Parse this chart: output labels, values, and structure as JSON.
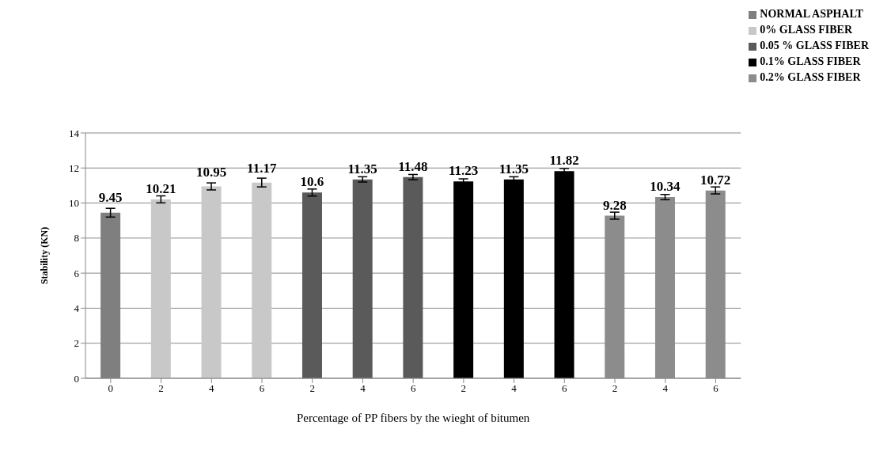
{
  "chart_data": {
    "type": "bar",
    "xlabel": "Percentage of PP fibers by the wieght of bitumen",
    "ylabel": "Stability (KN)",
    "categories": [
      "0",
      "2",
      "4",
      "6",
      "2",
      "4",
      "6",
      "2",
      "4",
      "6",
      "2",
      "4",
      "6"
    ],
    "stacked": true,
    "ylim": [
      0,
      14
    ],
    "yticks": [
      0,
      2,
      4,
      6,
      8,
      10,
      12,
      14
    ],
    "grid": "y",
    "legend": "top right",
    "data_labels": true,
    "series": [
      {
        "name": "NORMAL ASPHALT",
        "color": "#7f7f7f",
        "values": [
          9.45,
          null,
          null,
          null,
          null,
          null,
          null,
          null,
          null,
          null,
          null,
          null,
          null
        ],
        "errors": [
          0.25,
          null,
          null,
          null,
          null,
          null,
          null,
          null,
          null,
          null,
          null,
          null,
          null
        ]
      },
      {
        "name": "0% GLASS FIBER",
        "color": "#c8c8c8",
        "values": [
          null,
          10.21,
          10.95,
          11.17,
          null,
          null,
          null,
          null,
          null,
          null,
          null,
          null,
          null
        ],
        "errors": [
          null,
          0.2,
          0.2,
          0.25,
          null,
          null,
          null,
          null,
          null,
          null,
          null,
          null,
          null
        ]
      },
      {
        "name": "0.05 % GLASS FIBER",
        "color": "#5a5a5a",
        "values": [
          null,
          null,
          null,
          null,
          10.6,
          11.35,
          11.48,
          null,
          null,
          null,
          null,
          null,
          null
        ],
        "errors": [
          null,
          null,
          null,
          null,
          0.2,
          0.15,
          0.15,
          null,
          null,
          null,
          null,
          null,
          null
        ]
      },
      {
        "name": "0.1% GLASS FIBER",
        "color": "#000000",
        "values": [
          null,
          null,
          null,
          null,
          null,
          null,
          null,
          11.23,
          11.35,
          11.82,
          null,
          null,
          null
        ],
        "errors": [
          null,
          null,
          null,
          null,
          null,
          null,
          null,
          0.15,
          0.15,
          0.15,
          null,
          null,
          null
        ]
      },
      {
        "name": "0.2% GLASS FIBER",
        "color": "#8c8c8c",
        "values": [
          null,
          null,
          null,
          null,
          null,
          null,
          null,
          null,
          null,
          null,
          9.28,
          10.34,
          10.72
        ],
        "errors": [
          null,
          null,
          null,
          null,
          null,
          null,
          null,
          null,
          null,
          null,
          0.2,
          0.15,
          0.2
        ]
      }
    ]
  }
}
